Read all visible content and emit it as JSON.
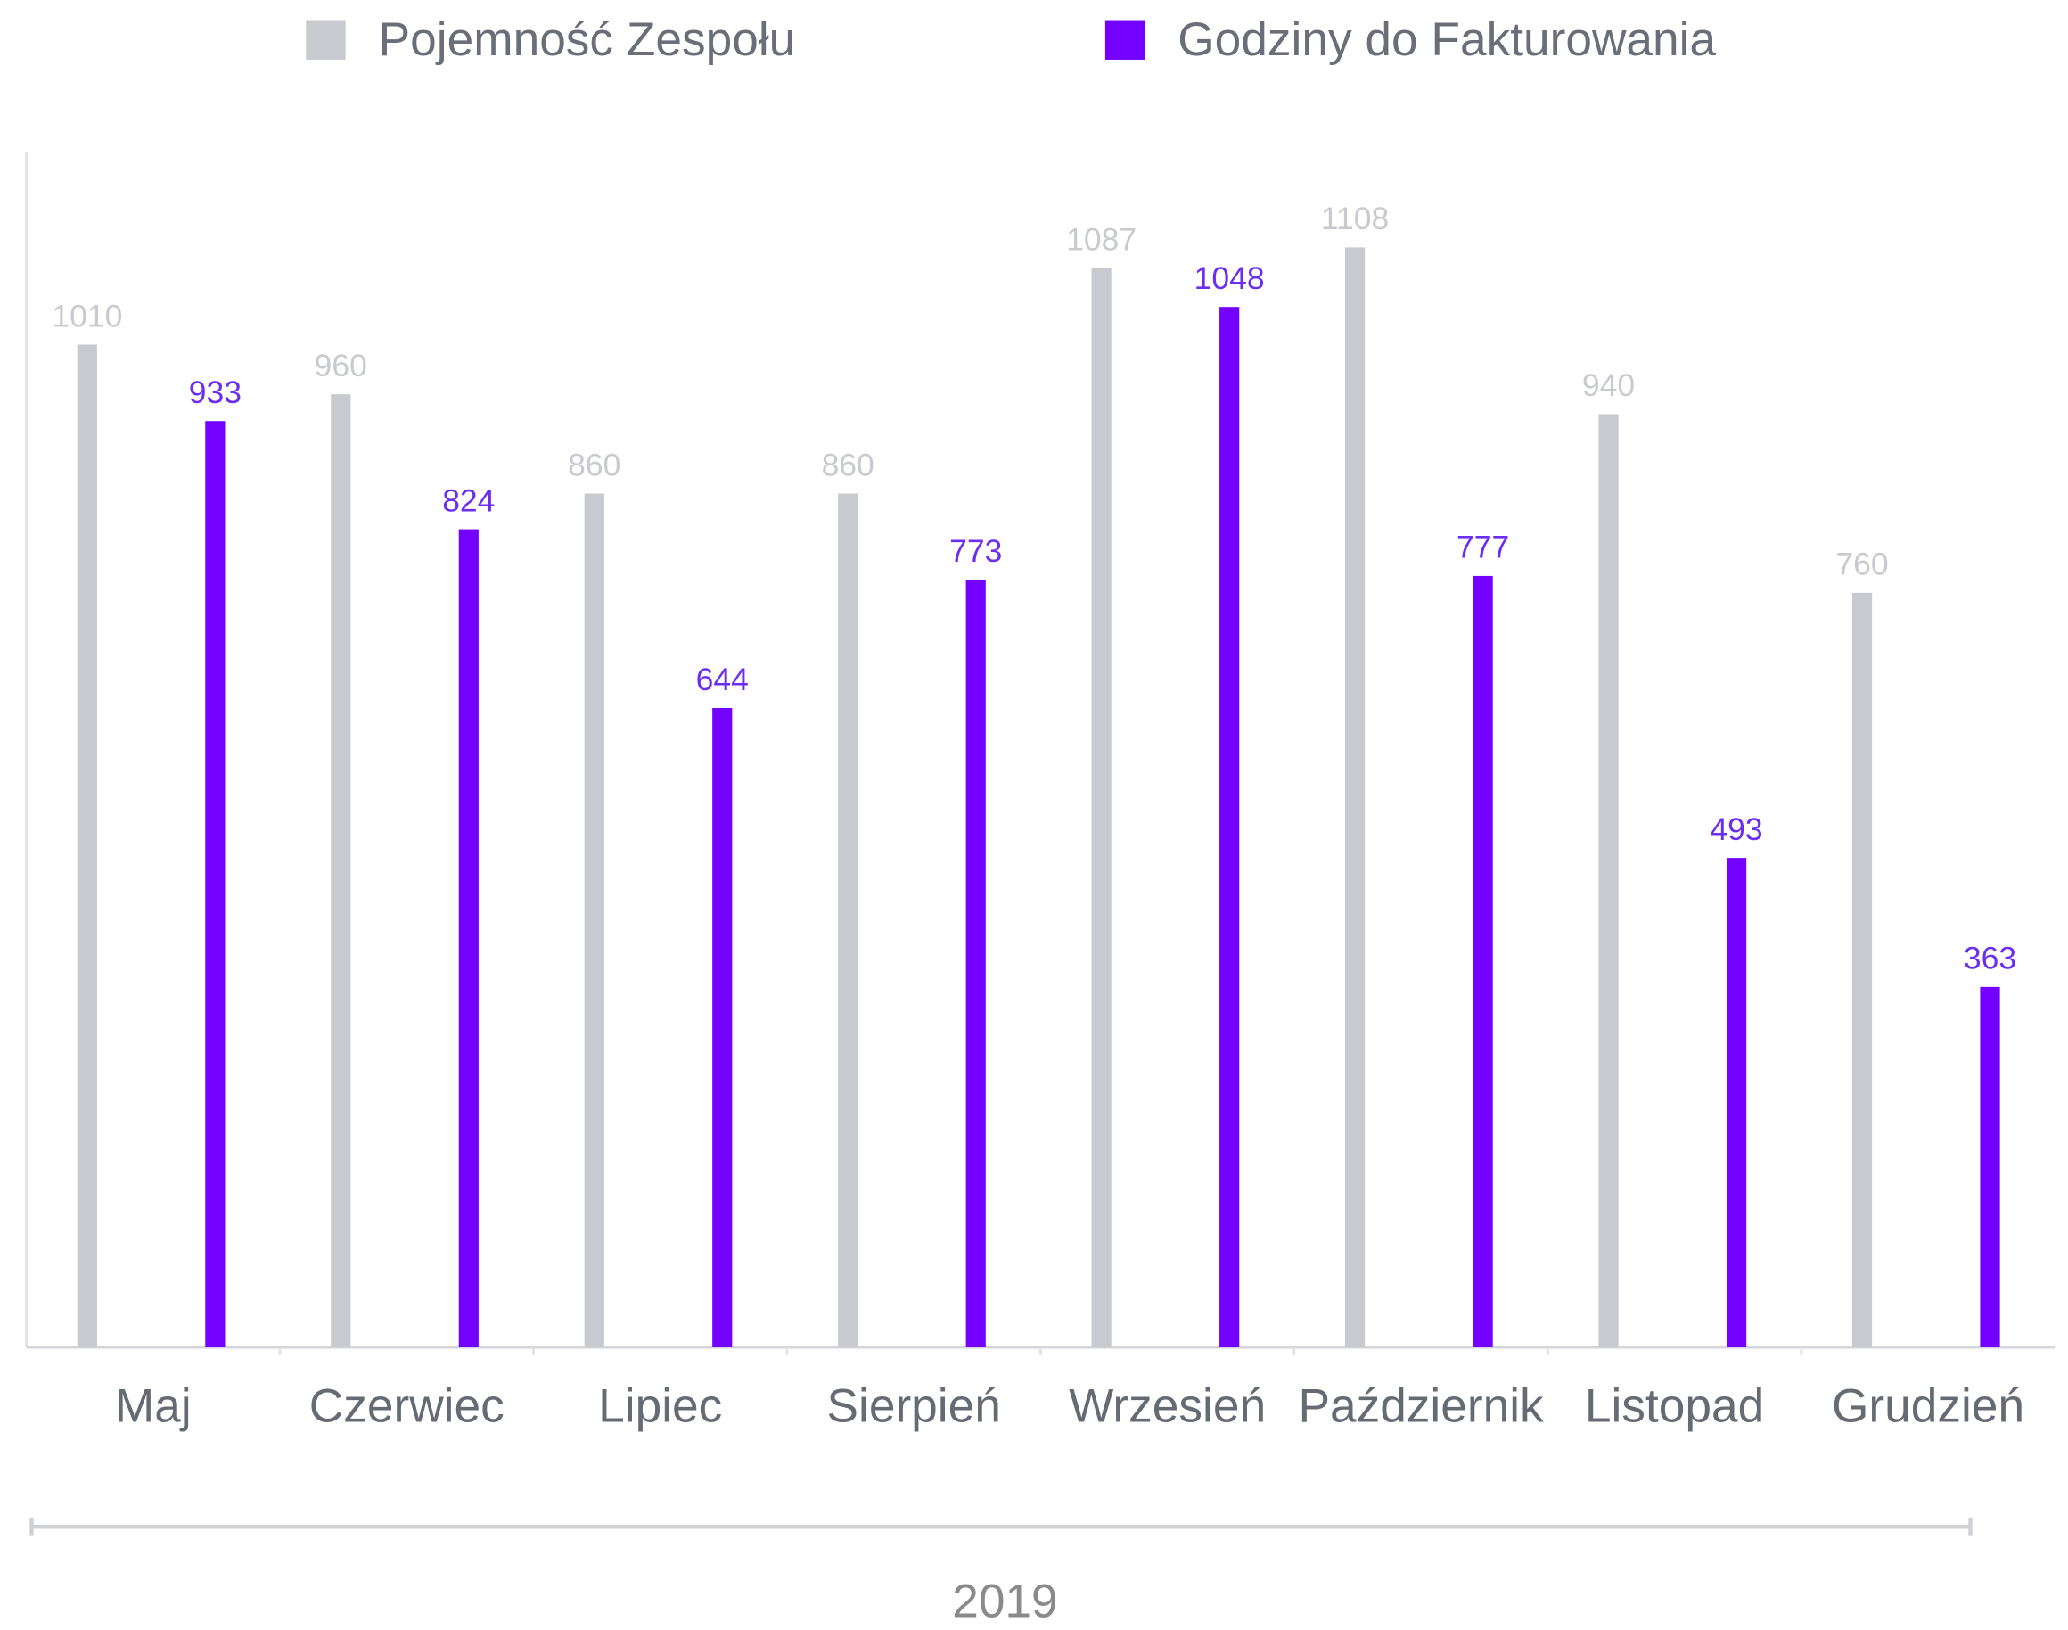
{
  "chart_data": {
    "type": "bar",
    "categories": [
      "Maj",
      "Czerwiec",
      "Lipiec",
      "Sierpień",
      "Wrzesień",
      "Październik",
      "Listopad",
      "Grudzień"
    ],
    "series": [
      {
        "name": "Pojemność Zespołu",
        "color": "#c8cad0",
        "values": [
          1010,
          960,
          860,
          860,
          1087,
          1108,
          940,
          760
        ]
      },
      {
        "name": "Godziny do Fakturowania",
        "color": "#7400ff",
        "values": [
          933,
          824,
          644,
          773,
          1048,
          777,
          493,
          363
        ]
      }
    ],
    "ylim": [
      0,
      1204
    ],
    "period_label": "2019",
    "legend": "top"
  }
}
